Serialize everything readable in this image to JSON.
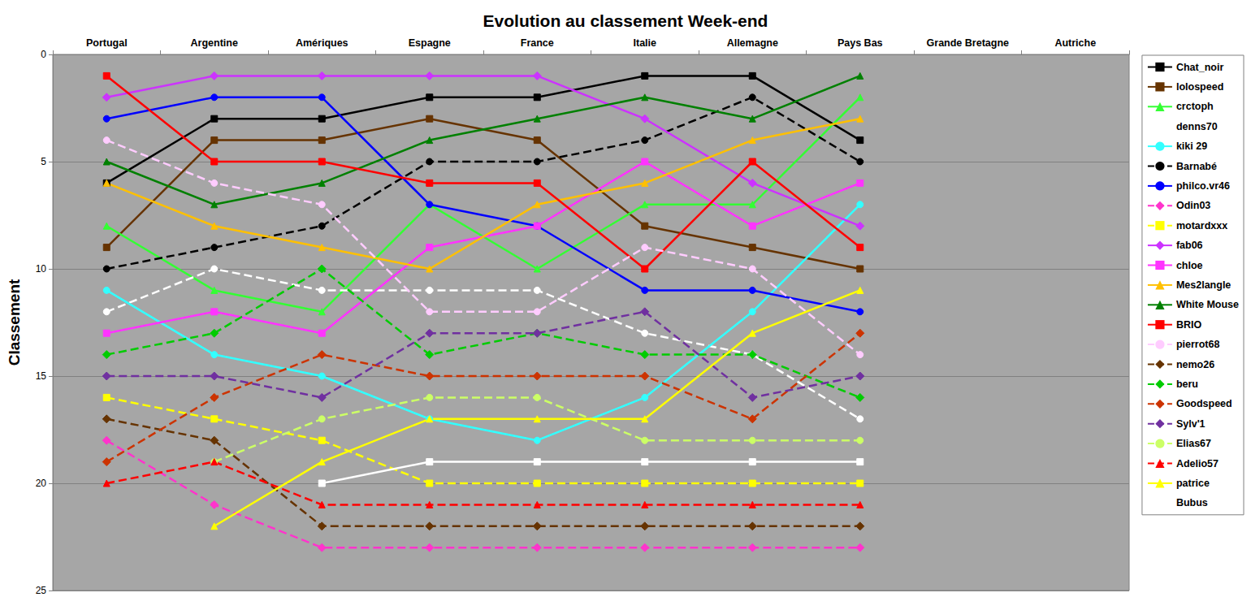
{
  "chart_data": {
    "type": "line",
    "title": "Evolution au classement Week-end",
    "y_label": "Classement",
    "categories": [
      "Portugal",
      "Argentine",
      "Amériques",
      "Espagne",
      "France",
      "Italie",
      "Allemagne",
      "Pays Bas",
      "Grande Bretagne",
      "Autriche"
    ],
    "ylim": [
      0,
      25
    ],
    "yticks": [
      0,
      5,
      10,
      15,
      20,
      25
    ],
    "grid": true,
    "legend": "right",
    "series": [
      {
        "name": "Chat_noir",
        "color": "#000000",
        "marker": "square",
        "line_style": "solid",
        "values": [
          6,
          3,
          3,
          2,
          2,
          1,
          1,
          4,
          null,
          null
        ]
      },
      {
        "name": "lolospeed",
        "color": "#663300",
        "marker": "square",
        "line_style": "solid",
        "values": [
          9,
          4,
          4,
          3,
          4,
          8,
          9,
          10,
          null,
          null
        ]
      },
      {
        "name": "crctoph",
        "color": "#33ff33",
        "marker": "triangle",
        "line_style": "solid",
        "values": [
          8,
          11,
          12,
          7,
          10,
          7,
          7,
          2,
          null,
          null
        ]
      },
      {
        "name": "denns70",
        "color": "#ffffff",
        "marker": "circle",
        "line_style": "dashed",
        "values": [
          12,
          10,
          11,
          11,
          11,
          13,
          14,
          17,
          null,
          null
        ]
      },
      {
        "name": "kiki 29",
        "color": "#33ffff",
        "marker": "circle",
        "line_style": "solid",
        "values": [
          11,
          14,
          15,
          17,
          18,
          16,
          12,
          7,
          null,
          null
        ]
      },
      {
        "name": "Barnabé",
        "color": "#000000",
        "marker": "circle",
        "line_style": "dashed",
        "values": [
          10,
          9,
          8,
          5,
          5,
          4,
          2,
          5,
          null,
          null
        ]
      },
      {
        "name": "philco.vr46",
        "color": "#0000ff",
        "marker": "circle",
        "line_style": "solid",
        "values": [
          3,
          2,
          2,
          7,
          8,
          11,
          11,
          12,
          null,
          null
        ]
      },
      {
        "name": "Odin03",
        "color": "#ff33cc",
        "marker": "diamond",
        "line_style": "dashed",
        "values": [
          18,
          21,
          23,
          23,
          23,
          23,
          23,
          23,
          null,
          null
        ]
      },
      {
        "name": "motardxxx",
        "color": "#ffff00",
        "marker": "square",
        "line_style": "dashed",
        "values": [
          16,
          17,
          18,
          20,
          20,
          20,
          20,
          20,
          null,
          null
        ]
      },
      {
        "name": "fab06",
        "color": "#cc33ff",
        "marker": "diamond",
        "line_style": "solid",
        "values": [
          2,
          1,
          1,
          1,
          1,
          3,
          6,
          8,
          null,
          null
        ]
      },
      {
        "name": "chloe",
        "color": "#ff33ff",
        "marker": "square",
        "line_style": "solid",
        "values": [
          13,
          12,
          13,
          9,
          8,
          5,
          8,
          6,
          null,
          null
        ]
      },
      {
        "name": "Mes2langle",
        "color": "#ffc000",
        "marker": "triangle",
        "line_style": "solid",
        "values": [
          6,
          8,
          9,
          10,
          7,
          6,
          4,
          3,
          null,
          null
        ]
      },
      {
        "name": "White Mouse",
        "color": "#008000",
        "marker": "triangle",
        "line_style": "solid",
        "values": [
          5,
          7,
          6,
          4,
          3,
          2,
          3,
          1,
          null,
          null
        ]
      },
      {
        "name": "BRIO",
        "color": "#ff0000",
        "marker": "square",
        "line_style": "solid",
        "values": [
          1,
          5,
          5,
          6,
          6,
          10,
          5,
          9,
          null,
          null
        ]
      },
      {
        "name": "pierrot68",
        "color": "#ffccff",
        "marker": "circle",
        "line_style": "dashed",
        "values": [
          4,
          6,
          7,
          12,
          12,
          9,
          10,
          14,
          null,
          null
        ]
      },
      {
        "name": "nemo26",
        "color": "#663300",
        "marker": "diamond",
        "line_style": "dashed",
        "values": [
          17,
          18,
          22,
          22,
          22,
          22,
          22,
          22,
          null,
          null
        ]
      },
      {
        "name": "beru",
        "color": "#00cc00",
        "marker": "diamond",
        "line_style": "dashed",
        "values": [
          14,
          13,
          10,
          14,
          13,
          14,
          14,
          16,
          null,
          null
        ]
      },
      {
        "name": "Goodspeed",
        "color": "#cc3300",
        "marker": "diamond",
        "line_style": "dashed",
        "values": [
          19,
          16,
          14,
          15,
          15,
          15,
          17,
          13,
          null,
          null
        ]
      },
      {
        "name": "Sylv'1",
        "color": "#7030a0",
        "marker": "diamond",
        "line_style": "dashed",
        "values": [
          15,
          15,
          16,
          13,
          13,
          12,
          16,
          15,
          null,
          null
        ]
      },
      {
        "name": "Elias67",
        "color": "#ccff66",
        "marker": "circle",
        "line_style": "dashed",
        "values": [
          null,
          19,
          17,
          16,
          16,
          18,
          18,
          18,
          null,
          null
        ]
      },
      {
        "name": "Adelio57",
        "color": "#ff0000",
        "marker": "triangle",
        "line_style": "dashed",
        "values": [
          20,
          19,
          21,
          21,
          21,
          21,
          21,
          21,
          null,
          null
        ]
      },
      {
        "name": "patrice",
        "color": "#ffff00",
        "marker": "triangle",
        "line_style": "solid",
        "values": [
          null,
          22,
          19,
          17,
          17,
          17,
          13,
          11,
          null,
          null
        ]
      },
      {
        "name": "Bubus",
        "color": "#ffffff",
        "marker": "square",
        "line_style": "solid",
        "values": [
          null,
          null,
          20,
          19,
          19,
          19,
          19,
          19,
          null,
          null
        ]
      }
    ]
  }
}
